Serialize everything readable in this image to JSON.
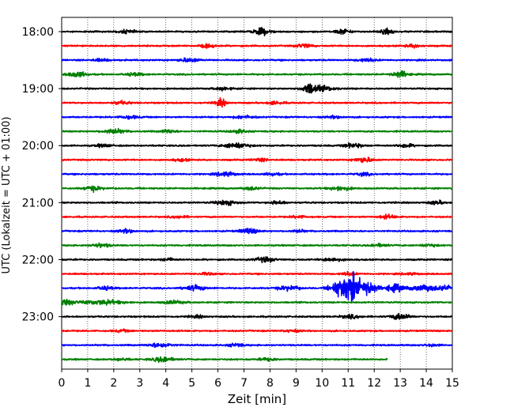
{
  "chart_data": {
    "type": "line",
    "title": "",
    "xlabel": "Zeit  [min]",
    "ylabel": "UTC (Lokalzeit = UTC + 01:00)",
    "xlim": [
      0,
      15
    ],
    "x_ticks": [
      "0",
      "1",
      "2",
      "3",
      "4",
      "5",
      "6",
      "7",
      "8",
      "9",
      "10",
      "11",
      "12",
      "13",
      "14",
      "15"
    ],
    "y_ticks": [
      "18:00",
      "19:00",
      "20:00",
      "21:00",
      "22:00",
      "23:00"
    ],
    "row_colors": [
      "#000000",
      "#ff0000",
      "#0000ff",
      "#008000"
    ],
    "grid": "vertical dotted",
    "rows_start": "18:00",
    "row_interval_min": 15,
    "event": {
      "row": "22:30",
      "start_min": 10.0,
      "peak_min": 11.2,
      "end_min": 12.6
    },
    "series": [
      {
        "row": "18:00",
        "color": "#000000",
        "bursts": [
          [
            7.7,
            0.35,
            1.6
          ],
          [
            10.8,
            0.3,
            1.2
          ],
          [
            12.5,
            0.25,
            1.4
          ],
          [
            2.5,
            0.3,
            0.8
          ]
        ]
      },
      {
        "row": "18:15",
        "color": "#ff0000",
        "bursts": [
          [
            9.3,
            0.3,
            1.0
          ],
          [
            5.6,
            0.3,
            0.8
          ],
          [
            13.5,
            0.3,
            0.8
          ]
        ]
      },
      {
        "row": "18:30",
        "color": "#0000ff",
        "bursts": [
          [
            4.9,
            0.4,
            1.0
          ],
          [
            11.7,
            0.35,
            0.8
          ],
          [
            1.5,
            0.3,
            0.6
          ]
        ]
      },
      {
        "row": "18:45",
        "color": "#008000",
        "bursts": [
          [
            0.6,
            0.35,
            1.4
          ],
          [
            13.0,
            0.3,
            1.6
          ],
          [
            2.8,
            0.3,
            0.8
          ]
        ]
      },
      {
        "row": "19:00",
        "color": "#000000",
        "bursts": [
          [
            9.5,
            0.25,
            2.6
          ],
          [
            10.0,
            0.5,
            1.2
          ],
          [
            6.2,
            0.3,
            0.8
          ]
        ]
      },
      {
        "row": "19:15",
        "color": "#ff0000",
        "bursts": [
          [
            6.1,
            0.2,
            2.0
          ],
          [
            8.2,
            0.3,
            0.8
          ],
          [
            2.3,
            0.3,
            0.8
          ]
        ]
      },
      {
        "row": "19:30",
        "color": "#0000ff",
        "bursts": [
          [
            2.6,
            0.35,
            0.8
          ],
          [
            7.0,
            0.4,
            0.8
          ],
          [
            10.5,
            0.3,
            0.6
          ]
        ]
      },
      {
        "row": "19:45",
        "color": "#008000",
        "bursts": [
          [
            2.0,
            0.4,
            1.2
          ],
          [
            4.1,
            0.3,
            0.8
          ],
          [
            6.8,
            0.3,
            0.8
          ]
        ]
      },
      {
        "row": "20:00",
        "color": "#000000",
        "bursts": [
          [
            6.7,
            0.45,
            1.4
          ],
          [
            11.2,
            0.35,
            1.1
          ],
          [
            13.2,
            0.3,
            0.9
          ],
          [
            1.6,
            0.3,
            0.7
          ]
        ]
      },
      {
        "row": "20:15",
        "color": "#ff0000",
        "bursts": [
          [
            11.6,
            0.35,
            1.3
          ],
          [
            7.6,
            0.3,
            0.7
          ],
          [
            4.6,
            0.3,
            0.6
          ]
        ]
      },
      {
        "row": "20:30",
        "color": "#0000ff",
        "bursts": [
          [
            6.3,
            0.35,
            1.3
          ],
          [
            11.6,
            0.3,
            0.7
          ],
          [
            8.1,
            0.3,
            0.7
          ]
        ]
      },
      {
        "row": "20:45",
        "color": "#008000",
        "bursts": [
          [
            1.2,
            0.35,
            1.2
          ],
          [
            10.7,
            0.4,
            1.0
          ],
          [
            7.3,
            0.3,
            0.8
          ]
        ]
      },
      {
        "row": "21:00",
        "color": "#000000",
        "bursts": [
          [
            6.3,
            0.4,
            1.2
          ],
          [
            8.3,
            0.3,
            0.9
          ],
          [
            14.4,
            0.3,
            0.8
          ]
        ]
      },
      {
        "row": "21:15",
        "color": "#ff0000",
        "bursts": [
          [
            12.5,
            0.3,
            1.0
          ],
          [
            4.5,
            0.3,
            0.6
          ],
          [
            9.1,
            0.3,
            0.6
          ]
        ]
      },
      {
        "row": "21:30",
        "color": "#0000ff",
        "bursts": [
          [
            7.2,
            0.35,
            1.3
          ],
          [
            2.5,
            0.3,
            0.9
          ],
          [
            9.1,
            0.25,
            0.7
          ]
        ]
      },
      {
        "row": "21:45",
        "color": "#008000",
        "bursts": [
          [
            1.5,
            0.35,
            1.0
          ],
          [
            12.2,
            0.3,
            0.8
          ],
          [
            14.1,
            0.3,
            0.6
          ]
        ]
      },
      {
        "row": "22:00",
        "color": "#000000",
        "bursts": [
          [
            7.8,
            0.35,
            1.3
          ],
          [
            10.4,
            0.4,
            0.9
          ],
          [
            4.1,
            0.3,
            0.6
          ]
        ]
      },
      {
        "row": "22:15",
        "color": "#ff0000",
        "bursts": [
          [
            11.0,
            0.3,
            0.8
          ],
          [
            5.6,
            0.3,
            0.6
          ],
          [
            13.4,
            0.3,
            0.6
          ]
        ]
      },
      {
        "row": "22:30",
        "color": "#0000ff",
        "bursts": [
          [
            5.1,
            0.4,
            1.3
          ],
          [
            8.7,
            0.4,
            1.2
          ],
          [
            1.7,
            0.3,
            0.9
          ],
          [
            14.7,
            0.3,
            1.2
          ]
        ]
      },
      {
        "row": "22:45",
        "color": "#008000",
        "bursts": [
          [
            1.5,
            0.8,
            1.2
          ],
          [
            4.3,
            0.4,
            0.8
          ],
          [
            0.2,
            0.3,
            1.2
          ]
        ]
      },
      {
        "row": "23:00",
        "color": "#000000",
        "bursts": [
          [
            13.0,
            0.35,
            1.5
          ],
          [
            11.1,
            0.4,
            0.8
          ],
          [
            5.2,
            0.3,
            0.6
          ]
        ]
      },
      {
        "row": "23:15",
        "color": "#ff0000",
        "bursts": [
          [
            2.3,
            0.3,
            0.6
          ],
          [
            8.8,
            0.3,
            0.6
          ]
        ]
      },
      {
        "row": "23:30",
        "color": "#0000ff",
        "bursts": [
          [
            3.8,
            0.4,
            1.2
          ],
          [
            6.7,
            0.3,
            0.8
          ],
          [
            14.2,
            0.3,
            0.6
          ]
        ]
      },
      {
        "row": "23:45",
        "color": "#008000",
        "bursts": [
          [
            3.9,
            0.4,
            1.3
          ],
          [
            7.9,
            0.3,
            0.8
          ],
          [
            2.3,
            0.3,
            0.6
          ]
        ],
        "end_min": 12.5
      }
    ]
  }
}
